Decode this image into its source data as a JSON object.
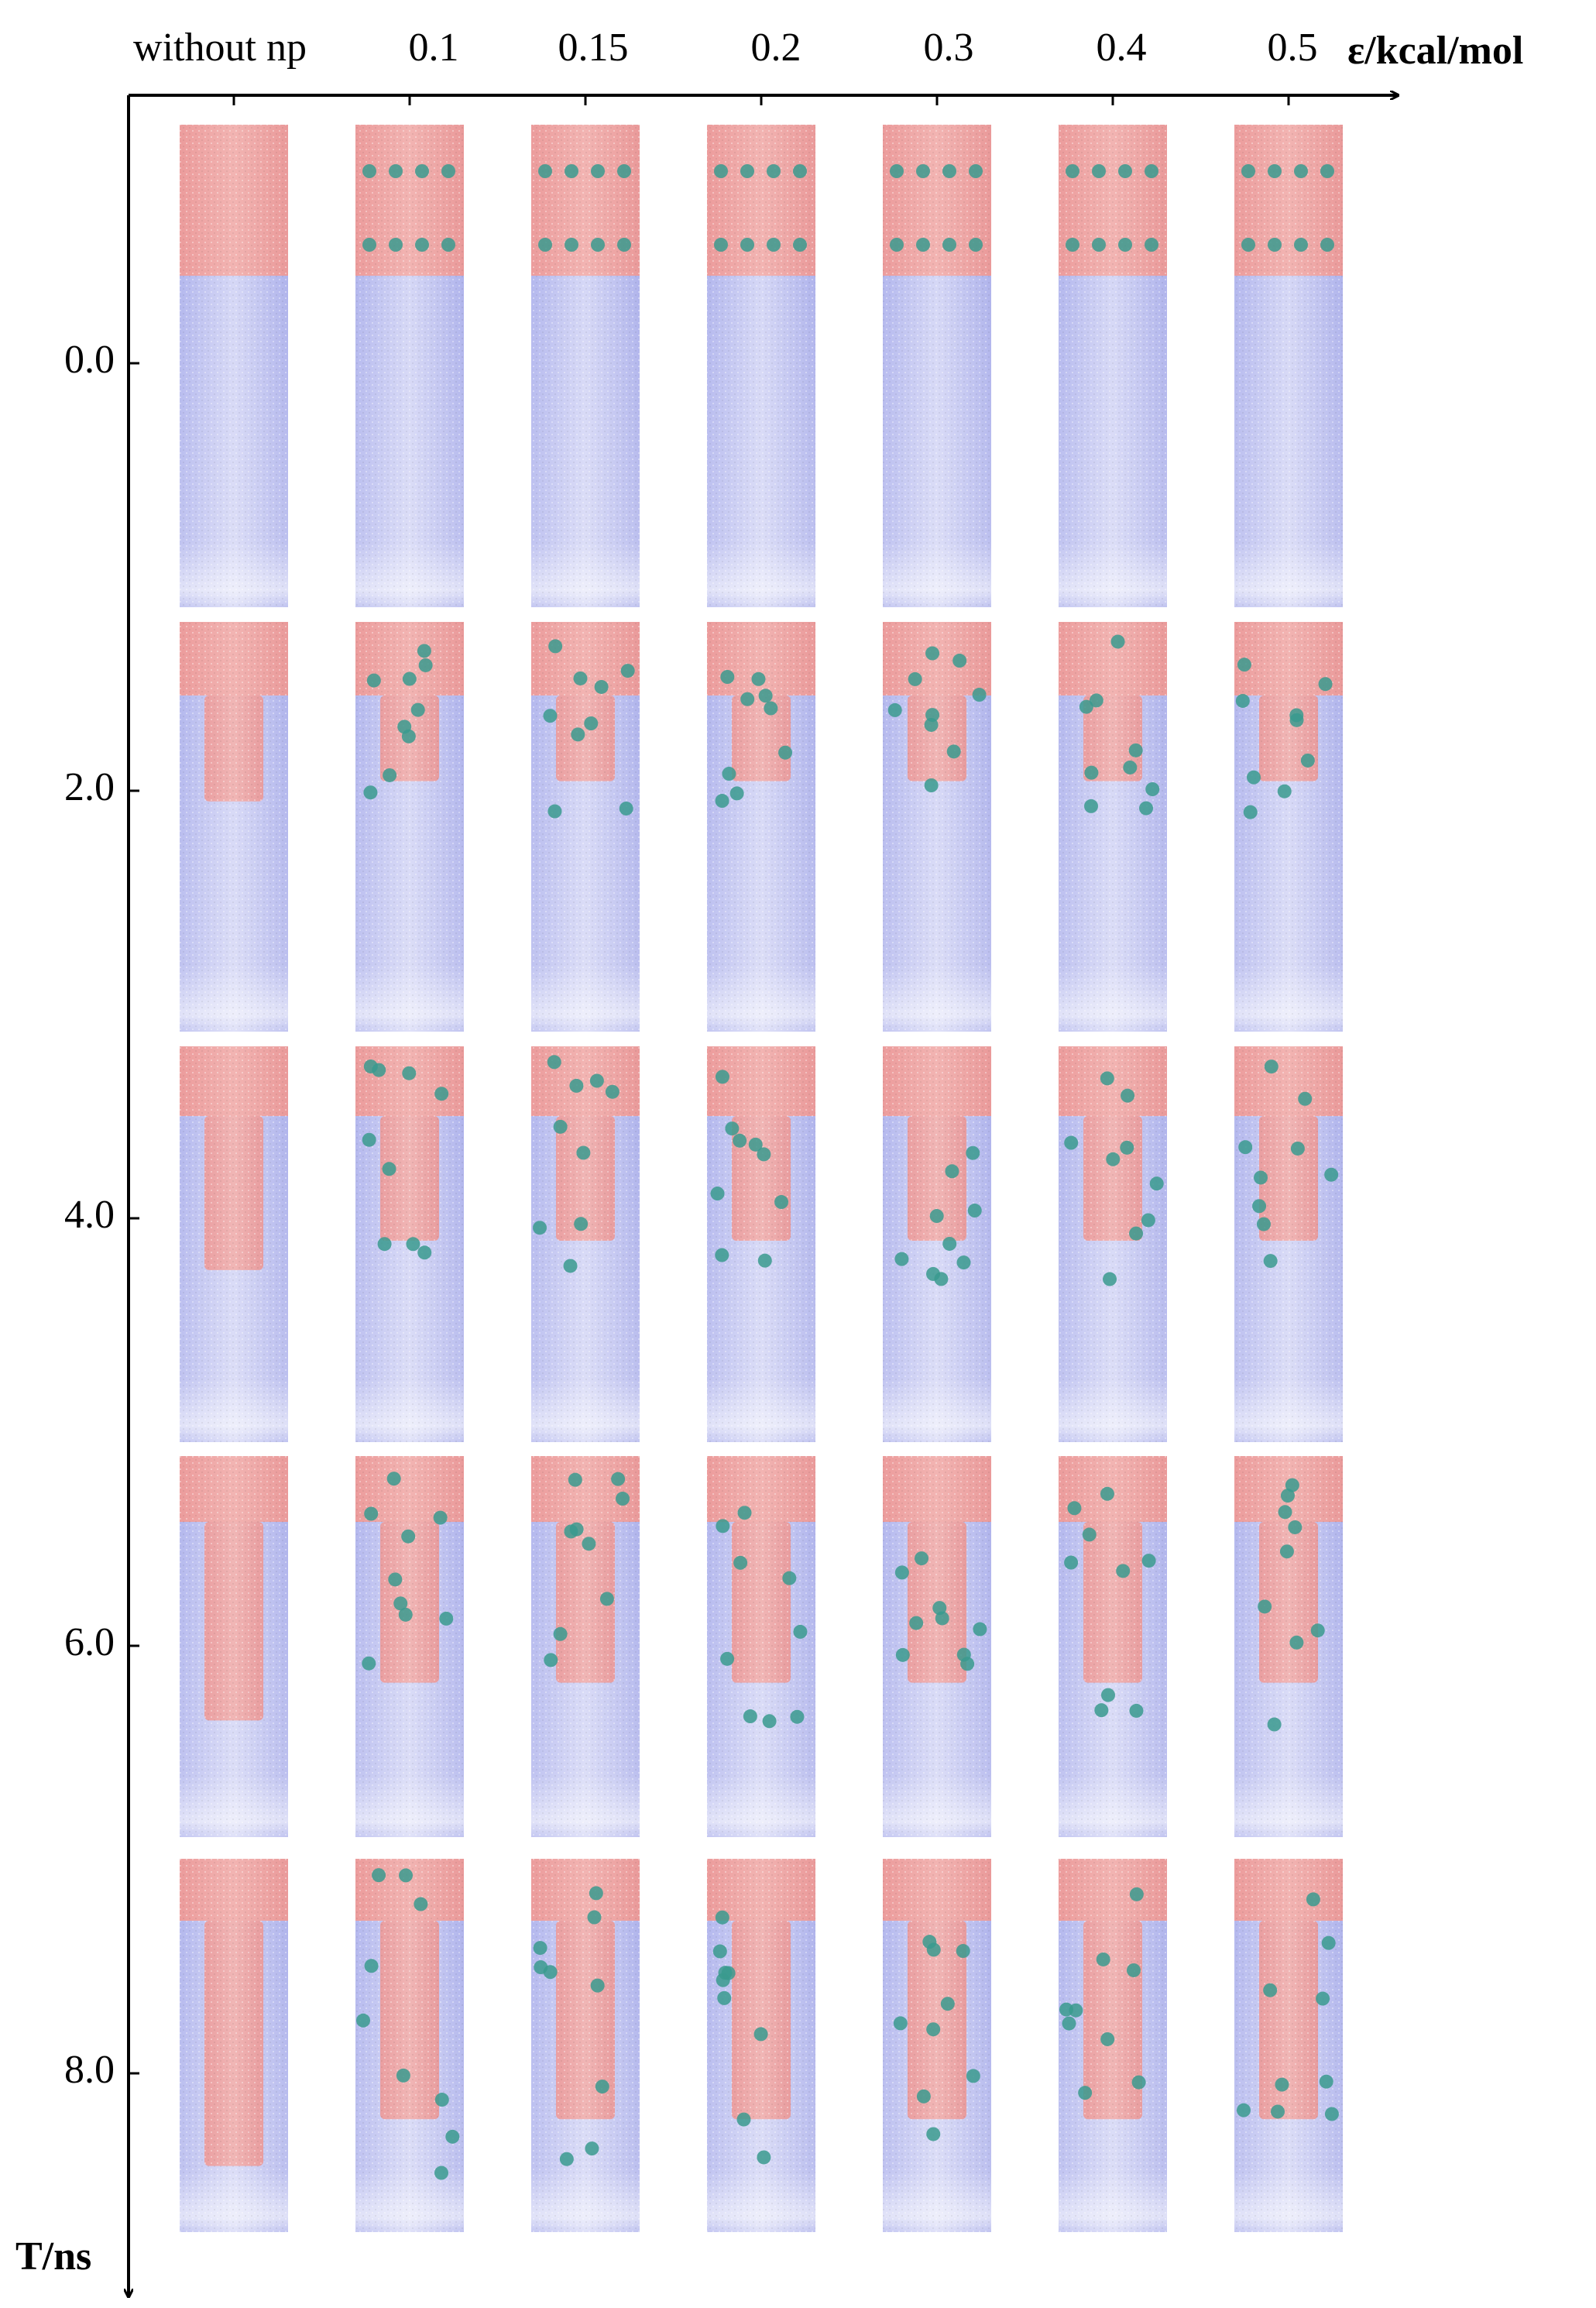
{
  "column_axis": {
    "label": "ε/kcal/mol",
    "columns": [
      "without np",
      "0.1",
      "0.15",
      "0.2",
      "0.3",
      "0.4",
      "0.5"
    ]
  },
  "row_axis": {
    "label": "T/ns",
    "rows": [
      "0.0",
      "2.0",
      "4.0",
      "6.0",
      "8.0"
    ]
  }
}
